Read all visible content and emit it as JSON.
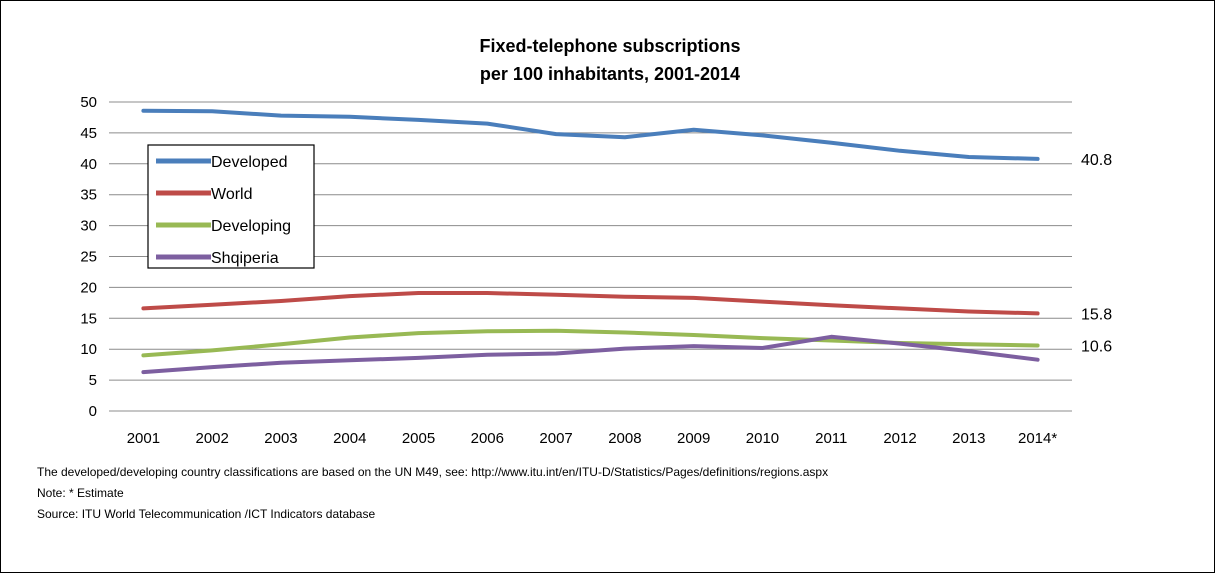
{
  "notes": {
    "classification": "The developed/developing country classifications are based on the UN M49, see: http://www.itu.int/en/ITU-D/Statistics/Pages/definitions/regions.aspx",
    "estimate": "Note: * Estimate",
    "source": "Source:  ITU World Telecommunication /ICT Indicators database"
  },
  "chart_data": {
    "type": "line",
    "title": "Fixed-telephone subscriptions",
    "subtitle": "per 100 inhabitants, 2001-2014",
    "xlabel": "",
    "ylabel": "",
    "categories": [
      "2001",
      "2002",
      "2003",
      "2004",
      "2005",
      "2006",
      "2007",
      "2008",
      "2009",
      "2010",
      "2011",
      "2012",
      "2013",
      "2014*"
    ],
    "ylim": [
      0,
      50
    ],
    "yticks": [
      "0",
      "5",
      "10",
      "15",
      "20",
      "25",
      "30",
      "35",
      "40",
      "45",
      "50"
    ],
    "grid": "horizontal",
    "legend_position": "top-left",
    "series": [
      {
        "name": "Developed",
        "color": "#4a7ebb",
        "values": [
          48.6,
          48.5,
          47.8,
          47.6,
          47.1,
          46.5,
          44.8,
          44.3,
          45.5,
          44.6,
          43.4,
          42.1,
          41.1,
          40.8
        ],
        "end_label": "40.8"
      },
      {
        "name": "World",
        "color": "#be4b48",
        "values": [
          16.6,
          17.2,
          17.8,
          18.6,
          19.1,
          19.1,
          18.8,
          18.5,
          18.3,
          17.7,
          17.1,
          16.6,
          16.1,
          15.8
        ],
        "end_label": "15.8"
      },
      {
        "name": "Developing",
        "color": "#98b954",
        "values": [
          9.0,
          9.8,
          10.8,
          11.9,
          12.6,
          12.9,
          13.0,
          12.7,
          12.3,
          11.8,
          11.4,
          11.0,
          10.8,
          10.6
        ],
        "end_label": "10.6"
      },
      {
        "name": "Shqiperia",
        "color": "#7d5fa0",
        "values": [
          6.3,
          7.1,
          7.8,
          8.2,
          8.6,
          9.1,
          9.3,
          10.1,
          10.5,
          10.2,
          12.0,
          10.9,
          9.7,
          8.3
        ],
        "end_label": ""
      }
    ]
  }
}
